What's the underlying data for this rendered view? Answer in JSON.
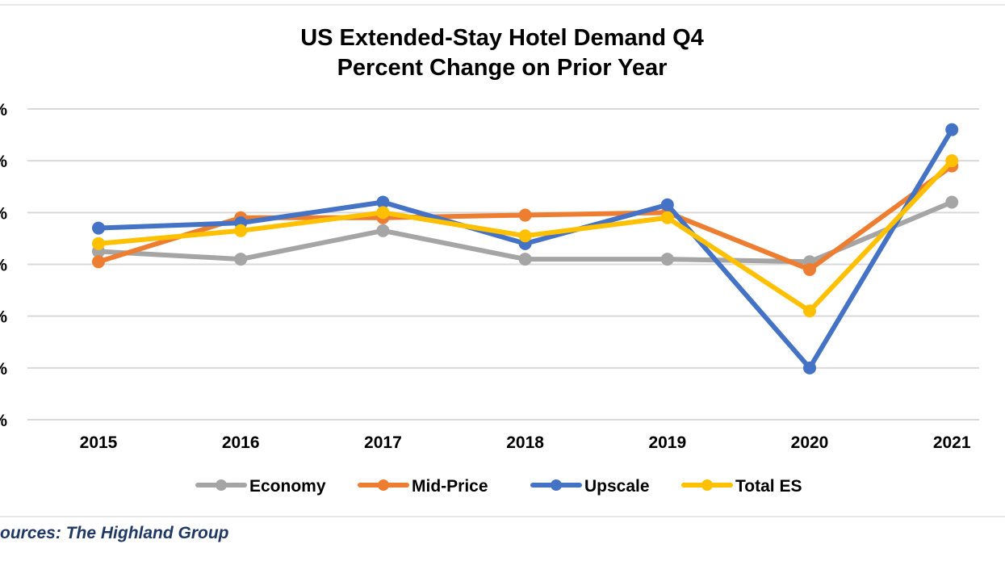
{
  "chart_data": {
    "type": "line",
    "title": "US Extended-Stay Hotel Demand Q4",
    "subtitle": "Percent Change on Prior Year",
    "categories": [
      "2015",
      "2016",
      "2017",
      "2018",
      "2019",
      "2020",
      "2021"
    ],
    "y_tick_labels": [
      "%",
      "%",
      "%",
      "%",
      "%",
      "%",
      "%"
    ],
    "ylim": [
      -30,
      30
    ],
    "grid": true,
    "legend_position": "bottom",
    "series": [
      {
        "name": "Economy",
        "color": "#a5a5a5",
        "values": [
          2.5,
          1.0,
          6.5,
          1.0,
          1.0,
          0.5,
          12.0
        ]
      },
      {
        "name": "Mid-Price",
        "color": "#ed7d31",
        "values": [
          0.5,
          9.0,
          9.0,
          9.5,
          10.0,
          -1.0,
          19.0
        ]
      },
      {
        "name": "Upscale",
        "color": "#4472c4",
        "values": [
          7.0,
          8.0,
          12.0,
          4.0,
          11.5,
          -20.0,
          26.0
        ]
      },
      {
        "name": "Total ES",
        "color": "#ffc000",
        "values": [
          4.0,
          6.5,
          10.0,
          5.5,
          9.0,
          -9.0,
          20.0
        ]
      }
    ],
    "source": "ources: The Highland Group"
  }
}
